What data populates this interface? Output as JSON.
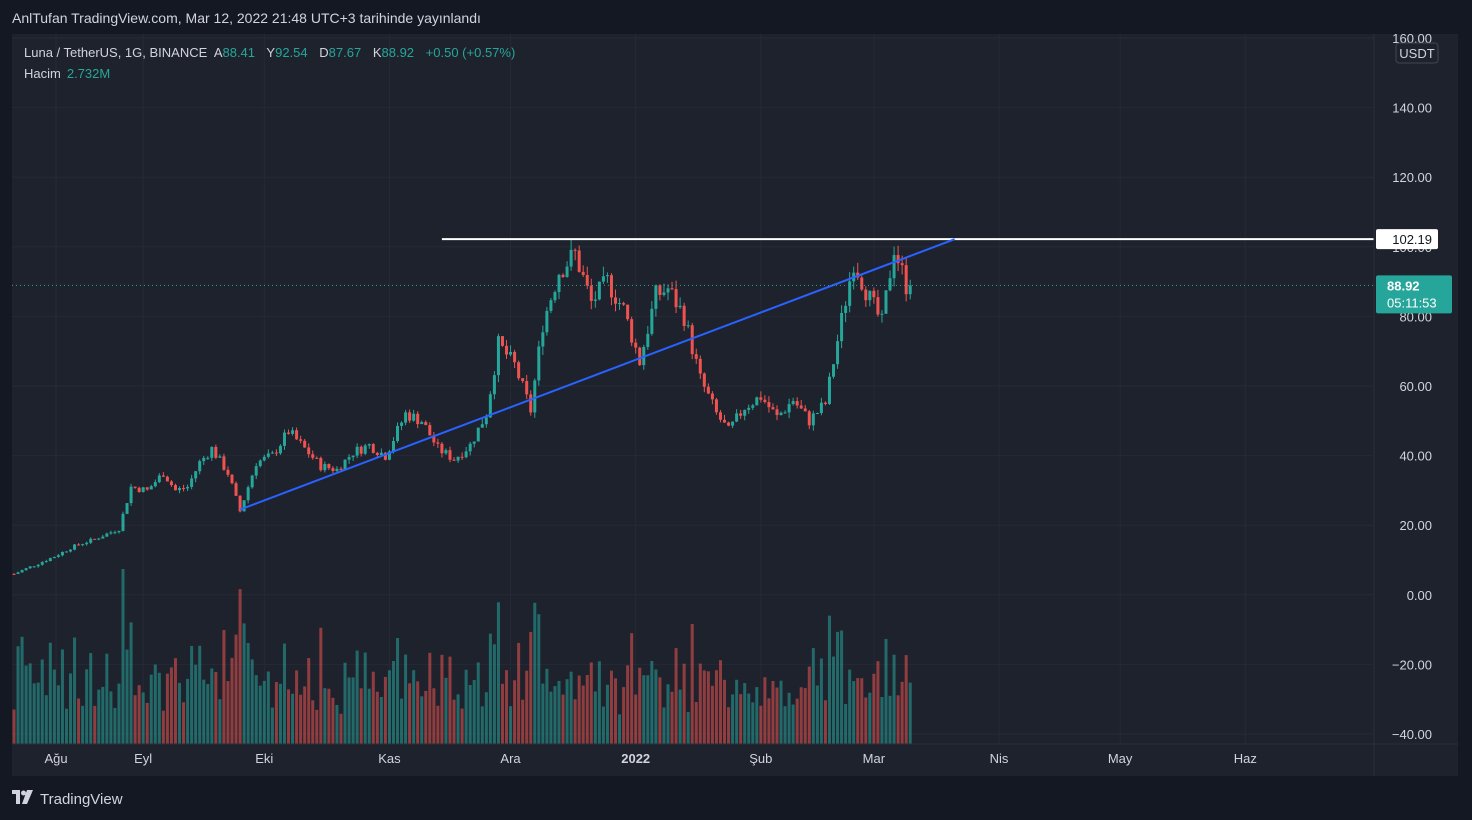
{
  "header": {
    "title": "AnlTufan TradingView.com, Mar 12, 2022 21:48 UTC+3 tarihinde yayınlandı"
  },
  "legend": {
    "symbol": "Luna / TetherUS, 1G, BINANCE",
    "open_label": "A",
    "open": "88.41",
    "high_label": "Y",
    "high": "92.54",
    "low_label": "D",
    "low": "87.67",
    "close_label": "K",
    "close": "88.92",
    "change": "+0.50 (+0.57%)",
    "volume_label": "Hacim",
    "volume": "2.732M"
  },
  "currency": "USDT",
  "price_tags": {
    "resistance": "102.19",
    "last_price": "88.92",
    "countdown": "05:11:53"
  },
  "footer": {
    "brand": "TradingView"
  },
  "colors": {
    "up": "#26a69a",
    "down": "#ef5350",
    "trendline": "#2962ff",
    "resistance": "#ffffff",
    "background": "#1e222d"
  },
  "chart_data": {
    "type": "candlestick",
    "title": "Luna / TetherUS, 1G, BINANCE",
    "xlabel": "",
    "ylabel": "",
    "ylim": [
      -40,
      160
    ],
    "y_ticks": [
      "160.00",
      "140.00",
      "120.00",
      "100.00",
      "80.00",
      "60.00",
      "40.00",
      "20.00",
      "0.00",
      "−20.00",
      "−40.00"
    ],
    "x_ticks": [
      "Ağu",
      "Eyl",
      "Eki",
      "Kas",
      "Ara",
      "2022",
      "Şub",
      "Mar",
      "Nis",
      "May",
      "Haz"
    ],
    "grid": true,
    "price_path": [
      [
        "2021-07-31",
        6
      ],
      [
        "2021-08-05",
        8.5
      ],
      [
        "2021-08-10",
        11
      ],
      [
        "2021-08-15",
        14
      ],
      [
        "2021-08-20",
        16
      ],
      [
        "2021-08-26",
        19
      ],
      [
        "2021-08-29",
        31
      ],
      [
        "2021-09-02",
        30
      ],
      [
        "2021-09-06",
        35
      ],
      [
        "2021-09-09",
        30
      ],
      [
        "2021-09-12",
        31
      ],
      [
        "2021-09-15",
        38
      ],
      [
        "2021-09-18",
        42
      ],
      [
        "2021-09-22",
        35
      ],
      [
        "2021-09-25",
        24
      ],
      [
        "2021-09-29",
        38
      ],
      [
        "2021-10-03",
        40
      ],
      [
        "2021-10-07",
        47
      ],
      [
        "2021-10-11",
        42
      ],
      [
        "2021-10-15",
        37
      ],
      [
        "2021-10-19",
        36
      ],
      [
        "2021-10-23",
        41
      ],
      [
        "2021-10-27",
        43
      ],
      [
        "2021-10-31",
        40
      ],
      [
        "2021-11-05",
        52
      ],
      [
        "2021-11-09",
        50
      ],
      [
        "2021-11-13",
        42
      ],
      [
        "2021-11-17",
        39
      ],
      [
        "2021-11-21",
        43
      ],
      [
        "2021-11-25",
        52
      ],
      [
        "2021-11-28",
        72
      ],
      [
        "2021-12-02",
        66
      ],
      [
        "2021-12-06",
        53
      ],
      [
        "2021-12-09",
        78
      ],
      [
        "2021-12-13",
        93
      ],
      [
        "2021-12-17",
        98
      ],
      [
        "2021-12-21",
        84
      ],
      [
        "2021-12-25",
        90
      ],
      [
        "2021-12-29",
        82
      ],
      [
        "2022-01-02",
        67
      ],
      [
        "2022-01-06",
        86
      ],
      [
        "2022-01-09",
        88
      ],
      [
        "2022-01-13",
        80
      ],
      [
        "2022-01-17",
        62
      ],
      [
        "2022-01-21",
        52
      ],
      [
        "2022-01-24",
        47
      ],
      [
        "2022-01-28",
        54
      ],
      [
        "2022-02-01",
        57
      ],
      [
        "2022-02-05",
        51
      ],
      [
        "2022-02-09",
        56
      ],
      [
        "2022-02-13",
        50
      ],
      [
        "2022-02-17",
        55
      ],
      [
        "2022-02-21",
        79
      ],
      [
        "2022-02-24",
        96
      ],
      [
        "2022-02-28",
        85
      ],
      [
        "2022-03-03",
        78
      ],
      [
        "2022-03-06",
        100
      ],
      [
        "2022-03-09",
        89
      ],
      [
        "2022-03-10",
        88.92
      ]
    ],
    "volume_millions": "relative daily volume (up/down colored)",
    "annotations": [
      {
        "type": "horizontal-line",
        "label": "102.19",
        "value": 102.19,
        "start": "2021-11-14"
      },
      {
        "type": "trendline",
        "from": [
          "2021-09-25",
          24.5
        ],
        "to": [
          "2022-03-21",
          102.19
        ]
      }
    ],
    "last_price": 88.92
  }
}
